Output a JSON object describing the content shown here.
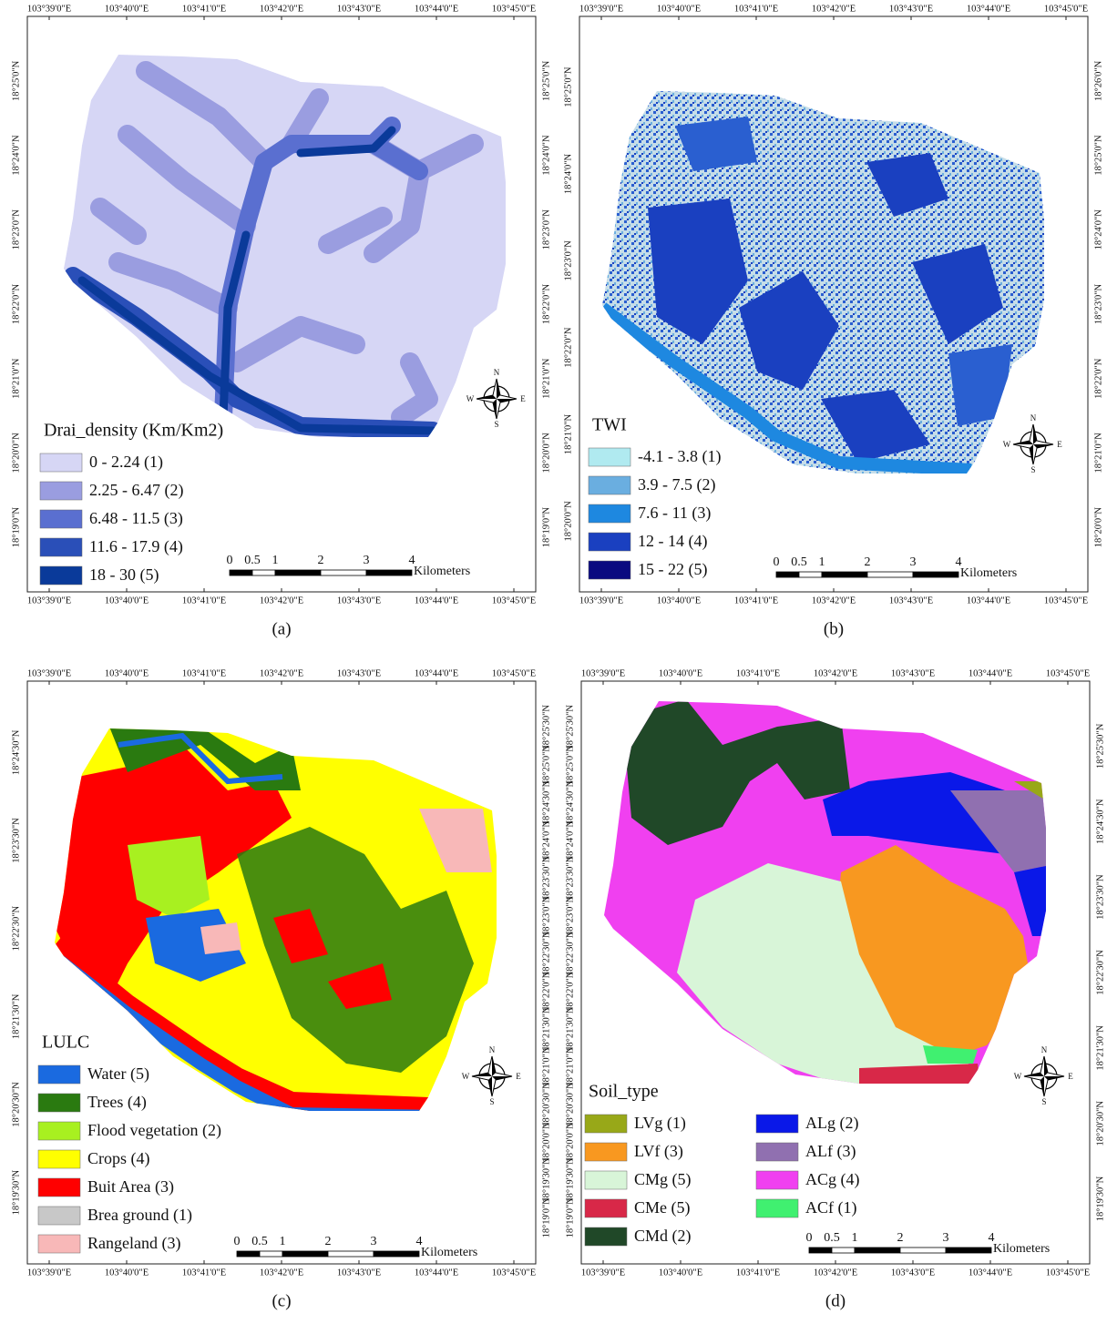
{
  "panels": [
    {
      "caption": "(a)",
      "lon_top": [
        "103°39'0\"E",
        "103°40'0\"E",
        "103°41'0\"E",
        "103°42'0\"E",
        "103°43'0\"E",
        "103°44'0\"E",
        "103°45'0\"E"
      ],
      "lon_bottom": [
        "103°39'0\"E",
        "103°40'0\"E",
        "103°41'0\"E",
        "103°42'0\"E",
        "103°43'0\"E",
        "103°44'0\"E",
        "103°45'0\"E"
      ],
      "lat_left": [
        "18°25'0\"N",
        "18°24'0\"N",
        "18°23'0\"N",
        "18°22'0\"N",
        "18°21'0\"N",
        "18°20'0\"N",
        "18°19'0\"N"
      ],
      "lat_right": [
        "18°25'0\"N",
        "18°24'0\"N",
        "18°23'0\"N",
        "18°22'0\"N",
        "18°21'0\"N",
        "18°20'0\"N",
        "18°19'0\"N"
      ],
      "legend": {
        "title": "Drai_density (Km/Km2)",
        "items": [
          {
            "label": "0 - 2.24 (1)",
            "color": "#d6d6f5"
          },
          {
            "label": "2.25 - 6.47 (2)",
            "color": "#9a9de0"
          },
          {
            "label": "6.48 - 11.5 (3)",
            "color": "#5a6fd0"
          },
          {
            "label": "11.6 - 17.9 (4)",
            "color": "#2a4fb8"
          },
          {
            "label": "18 - 30 (5)",
            "color": "#0a3a9a"
          }
        ]
      },
      "scale": {
        "ticks": [
          0,
          0.5,
          1,
          2,
          3,
          4
        ],
        "unit": "Kilometers"
      },
      "compass": {
        "n": "N",
        "s": "S",
        "e": "E",
        "w": "W"
      }
    },
    {
      "caption": "(b)",
      "lon_top": [
        "103°39'0\"E",
        "103°40'0\"E",
        "103°41'0\"E",
        "103°42'0\"E",
        "103°43'0\"E",
        "103°44'0\"E",
        "103°45'0\"E"
      ],
      "lon_bottom": [
        "103°39'0\"E",
        "103°40'0\"E",
        "103°41'0\"E",
        "103°42'0\"E",
        "103°43'0\"E",
        "103°44'0\"E",
        "103°45'0\"E"
      ],
      "lat_left": [
        "18°25'0\"N",
        "18°24'0\"N",
        "18°23'0\"N",
        "18°22'0\"N",
        "18°21'0\"N",
        "18°20'0\"N"
      ],
      "lat_right": [
        "18°26'0\"N",
        "18°25'0\"N",
        "18°24'0\"N",
        "18°23'0\"N",
        "18°22'0\"N",
        "18°21'0\"N",
        "18°20'0\"N"
      ],
      "legend": {
        "title": "TWI",
        "items": [
          {
            "label": "-4.1 - 3.8 (1)",
            "color": "#b0eaf0"
          },
          {
            "label": "3.9 - 7.5 (2)",
            "color": "#6aaee0"
          },
          {
            "label": "7.6 - 11 (3)",
            "color": "#1e88e0"
          },
          {
            "label": "12 - 14 (4)",
            "color": "#1a40c0"
          },
          {
            "label": "15 - 22 (5)",
            "color": "#0a0a80"
          }
        ]
      },
      "scale": {
        "ticks": [
          0,
          0.5,
          1,
          2,
          3,
          4
        ],
        "unit": "Kilometers"
      },
      "compass": {
        "n": "N",
        "s": "S",
        "e": "E",
        "w": "W"
      }
    },
    {
      "caption": "(c)",
      "lon_top": [
        "103°39'0\"E",
        "103°40'0\"E",
        "103°41'0\"E",
        "103°42'0\"E",
        "103°43'0\"E",
        "103°44'0\"E",
        "103°45'0\"E"
      ],
      "lon_bottom": [
        "103°39'0\"E",
        "103°40'0\"E",
        "103°41'0\"E",
        "103°42'0\"E",
        "103°43'0\"E",
        "103°44'0\"E",
        "103°45'0\"E"
      ],
      "lat_left": [
        "18°24'30\"N",
        "18°23'30\"N",
        "18°22'30\"N",
        "18°21'30\"N",
        "18°20'30\"N",
        "18°19'30\"N"
      ],
      "lat_right": [
        "18°25'30\"N",
        "18°25'0\"N",
        "18°24'30\"N",
        "18°24'0\"N",
        "18°23'30\"N",
        "18°23'0\"N",
        "18°22'30\"N",
        "18°22'0\"N",
        "18°21'30\"N",
        "18°21'0\"N",
        "18°20'30\"N",
        "18°20'0\"N",
        "18°19'30\"N",
        "18°19'0\"N"
      ],
      "legend": {
        "title": "LULC",
        "items": [
          {
            "label": "Water (5)",
            "color": "#1a6ae0"
          },
          {
            "label": "Trees (4)",
            "color": "#2a7a10"
          },
          {
            "label": "Flood vegetation (2)",
            "color": "#a8f020"
          },
          {
            "label": "Crops (4)",
            "color": "#ffff00"
          },
          {
            "label": "Buit Area (3)",
            "color": "#ff0000"
          },
          {
            "label": "Brea ground (1)",
            "color": "#c8c8c8"
          },
          {
            "label": "Rangeland (3)",
            "color": "#f8b8b8"
          }
        ]
      },
      "scale": {
        "ticks": [
          0,
          0.5,
          1,
          2,
          3,
          4
        ],
        "unit": "Kilometers"
      },
      "compass": {
        "n": "N",
        "s": "S",
        "e": "E",
        "w": "W"
      }
    },
    {
      "caption": "(d)",
      "lon_top": [
        "103°39'0\"E",
        "103°40'0\"E",
        "103°41'0\"E",
        "103°42'0\"E",
        "103°43'0\"E",
        "103°44'0\"E",
        "103°45'0\"E"
      ],
      "lon_bottom": [
        "103°39'0\"E",
        "103°40'0\"E",
        "103°41'0\"E",
        "103°42'0\"E",
        "103°43'0\"E",
        "103°44'0\"E",
        "103°45'0\"E"
      ],
      "lat_left": [
        "18°25'30\"N",
        "18°25'0\"N",
        "18°24'30\"N",
        "18°24'0\"N",
        "18°23'30\"N",
        "18°23'0\"N",
        "18°22'30\"N",
        "18°22'0\"N",
        "18°21'30\"N",
        "18°21'0\"N",
        "18°20'30\"N",
        "18°20'0\"N",
        "18°19'30\"N",
        "18°19'0\"N"
      ],
      "lat_right": [
        "18°25'30\"N",
        "18°24'30\"N",
        "18°23'30\"N",
        "18°22'30\"N",
        "18°21'30\"N",
        "18°20'30\"N",
        "18°19'30\"N"
      ],
      "legend": {
        "title": "Soil_type",
        "items": [
          {
            "label": "LVg (1)",
            "color": "#98a818"
          },
          {
            "label": "LVf (3)",
            "color": "#f89820"
          },
          {
            "label": "CMg (5)",
            "color": "#d8f5d8"
          },
          {
            "label": "CMe (5)",
            "color": "#d82848"
          },
          {
            "label": "CMd (2)",
            "color": "#204828"
          },
          {
            "label": "ALg (2)",
            "color": "#0a18e8"
          },
          {
            "label": "ALf (3)",
            "color": "#9070b0"
          },
          {
            "label": "ACg (4)",
            "color": "#f040f0"
          },
          {
            "label": "ACf (1)",
            "color": "#40f070"
          }
        ]
      },
      "scale": {
        "ticks": [
          0,
          0.5,
          1,
          2,
          3,
          4
        ],
        "unit": "Kilometers"
      },
      "compass": {
        "n": "N",
        "s": "S",
        "e": "E",
        "w": "W"
      }
    }
  ]
}
